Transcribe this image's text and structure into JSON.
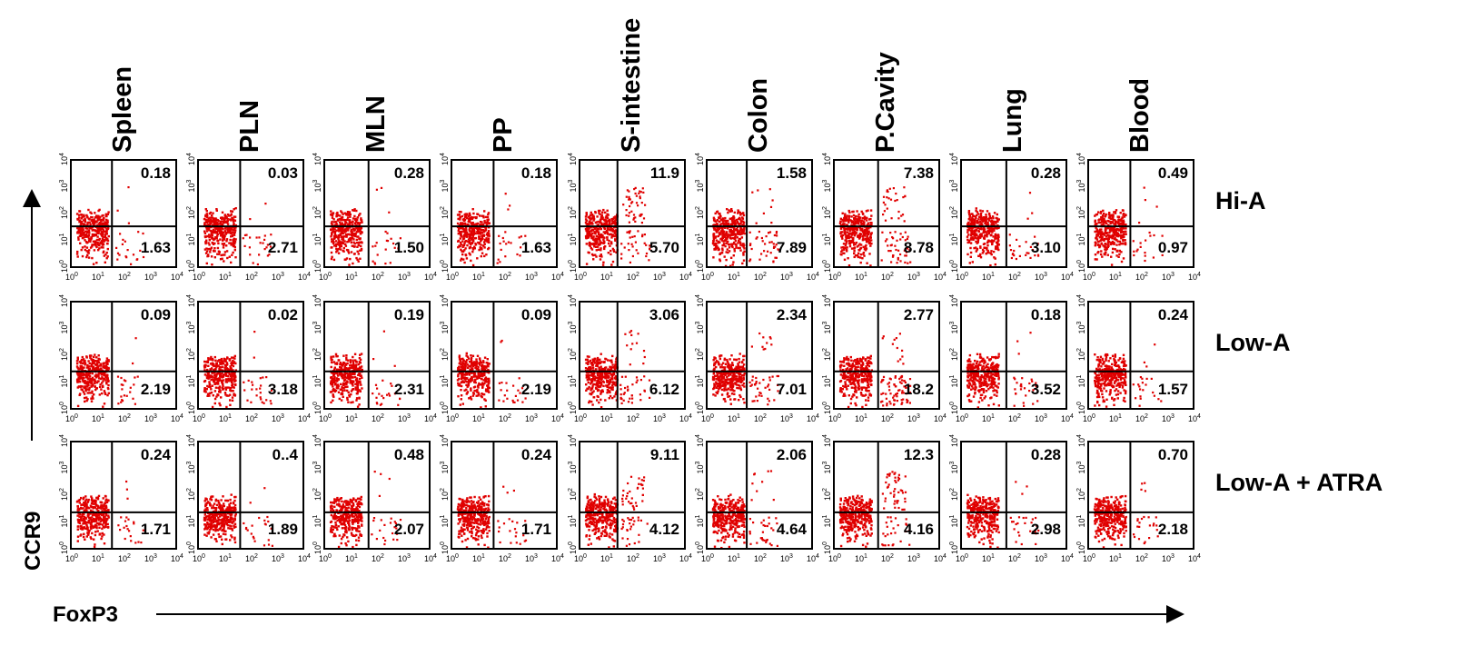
{
  "colors": {
    "dots": "#e00000",
    "lines": "#000000",
    "background": "#ffffff"
  },
  "columns": [
    "Spleen",
    "PLN",
    "MLN",
    "PP",
    "S-intestine",
    "Colon",
    "P.Cavity",
    "Lung",
    "Blood"
  ],
  "rows": [
    "Hi-A",
    "Low-A",
    "Low-A + ATRA"
  ],
  "x_axis_label": "FoxP3",
  "y_axis_label": "CCR9",
  "tick_labels": [
    "10",
    "10",
    "10",
    "10",
    "10"
  ],
  "tick_exponents": [
    "0",
    "1",
    "2",
    "3",
    "4"
  ],
  "chart_data": {
    "type": "scatter",
    "subtype": "flow cytometry dot plot grid",
    "x_scale": "log",
    "y_scale": "log",
    "xlim": [
      1,
      10000
    ],
    "ylim": [
      1,
      10000
    ],
    "xlabel": "FoxP3",
    "ylabel": "CCR9",
    "quadrant_values_description": "upper-right (CCR9+ FoxP3+) and lower-right (CCR9- FoxP3+) percentages per panel",
    "panels": [
      {
        "row": "Hi-A",
        "column": "Spleen",
        "upper_right": "0.18",
        "lower_right": "1.63"
      },
      {
        "row": "Hi-A",
        "column": "PLN",
        "upper_right": "0.03",
        "lower_right": "2.71"
      },
      {
        "row": "Hi-A",
        "column": "MLN",
        "upper_right": "0.28",
        "lower_right": "1.50"
      },
      {
        "row": "Hi-A",
        "column": "PP",
        "upper_right": "0.18",
        "lower_right": "1.63"
      },
      {
        "row": "Hi-A",
        "column": "S-intestine",
        "upper_right": "11.9",
        "lower_right": "5.70"
      },
      {
        "row": "Hi-A",
        "column": "Colon",
        "upper_right": "1.58",
        "lower_right": "7.89"
      },
      {
        "row": "Hi-A",
        "column": "P.Cavity",
        "upper_right": "7.38",
        "lower_right": "8.78"
      },
      {
        "row": "Hi-A",
        "column": "Lung",
        "upper_right": "0.28",
        "lower_right": "3.10"
      },
      {
        "row": "Hi-A",
        "column": "Blood",
        "upper_right": "0.49",
        "lower_right": "0.97"
      },
      {
        "row": "Low-A",
        "column": "Spleen",
        "upper_right": "0.09",
        "lower_right": "2.19"
      },
      {
        "row": "Low-A",
        "column": "PLN",
        "upper_right": "0.02",
        "lower_right": "3.18"
      },
      {
        "row": "Low-A",
        "column": "MLN",
        "upper_right": "0.19",
        "lower_right": "2.31"
      },
      {
        "row": "Low-A",
        "column": "PP",
        "upper_right": "0.09",
        "lower_right": "2.19"
      },
      {
        "row": "Low-A",
        "column": "S-intestine",
        "upper_right": "3.06",
        "lower_right": "6.12"
      },
      {
        "row": "Low-A",
        "column": "Colon",
        "upper_right": "2.34",
        "lower_right": "7.01"
      },
      {
        "row": "Low-A",
        "column": "P.Cavity",
        "upper_right": "2.77",
        "lower_right": "18.2"
      },
      {
        "row": "Low-A",
        "column": "Lung",
        "upper_right": "0.18",
        "lower_right": "3.52"
      },
      {
        "row": "Low-A",
        "column": "Blood",
        "upper_right": "0.24",
        "lower_right": "1.57"
      },
      {
        "row": "Low-A + ATRA",
        "column": "Spleen",
        "upper_right": "0.24",
        "lower_right": "1.71"
      },
      {
        "row": "Low-A + ATRA",
        "column": "PLN",
        "upper_right": "0..4",
        "lower_right": "1.89"
      },
      {
        "row": "Low-A + ATRA",
        "column": "MLN",
        "upper_right": "0.48",
        "lower_right": "2.07"
      },
      {
        "row": "Low-A + ATRA",
        "column": "PP",
        "upper_right": "0.24",
        "lower_right": "1.71"
      },
      {
        "row": "Low-A + ATRA",
        "column": "S-intestine",
        "upper_right": "9.11",
        "lower_right": "4.12"
      },
      {
        "row": "Low-A + ATRA",
        "column": "Colon",
        "upper_right": "2.06",
        "lower_right": "4.64"
      },
      {
        "row": "Low-A + ATRA",
        "column": "P.Cavity",
        "upper_right": "12.3",
        "lower_right": "4.16"
      },
      {
        "row": "Low-A + ATRA",
        "column": "Lung",
        "upper_right": "0.28",
        "lower_right": "2.98"
      },
      {
        "row": "Low-A + ATRA",
        "column": "Blood",
        "upper_right": "0.70",
        "lower_right": "2.18"
      }
    ]
  }
}
